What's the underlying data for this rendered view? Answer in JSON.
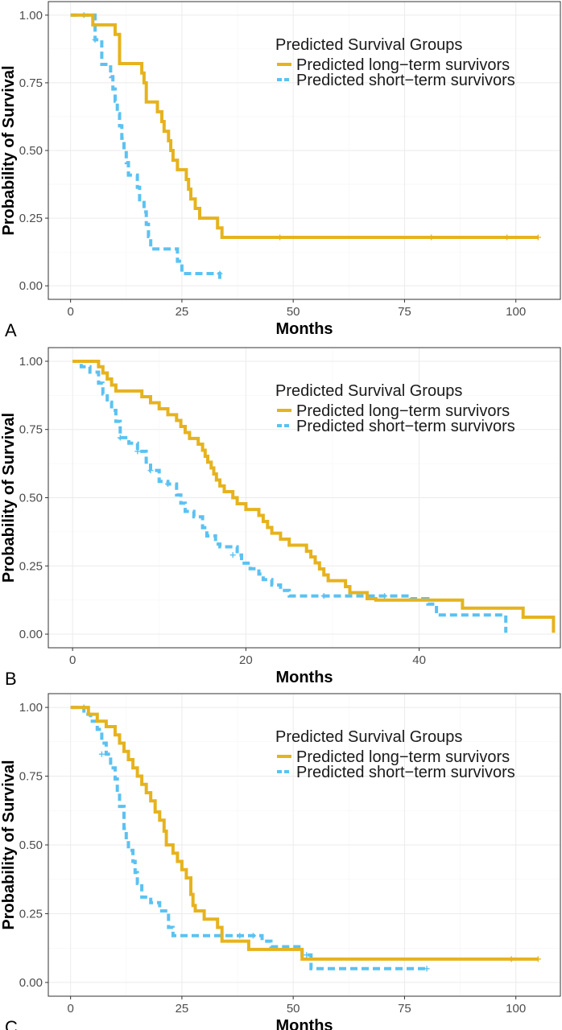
{
  "colors": {
    "long": "#E6B31E",
    "short": "#5BC2F2"
  },
  "chart_data": [
    {
      "type": "line",
      "subtype": "kaplan-meier-step",
      "panel_label": "A",
      "xlabel": "Months",
      "ylabel": "Probability of Survival",
      "xlim": [
        -5,
        110
      ],
      "ylim": [
        -0.05,
        1.05
      ],
      "xticks": [
        0,
        25,
        50,
        75,
        100
      ],
      "xtick_labels": [
        "0",
        "25",
        "50",
        "75",
        "100"
      ],
      "yticks": [
        0,
        0.25,
        0.5,
        0.75,
        1
      ],
      "ytick_labels": [
        "0.00",
        "0.25",
        "0.50",
        "0.75",
        "1.00"
      ],
      "grid": true,
      "legend": {
        "title": "Predicted Survival Groups",
        "position": "top-right",
        "entries": [
          "Predicted long−term survivors",
          "Predicted short−term survivors"
        ]
      },
      "series": [
        {
          "name": "Predicted long−term survivors",
          "style": "solid",
          "steps": [
            [
              0,
              1
            ],
            [
              5,
              0.964
            ],
            [
              10,
              0.929
            ],
            [
              11,
              0.821
            ],
            [
              16,
              0.786
            ],
            [
              16.5,
              0.75
            ],
            [
              17,
              0.679
            ],
            [
              19.5,
              0.643
            ],
            [
              20.5,
              0.607
            ],
            [
              21,
              0.571
            ],
            [
              22,
              0.536
            ],
            [
              22.5,
              0.5
            ],
            [
              23,
              0.464
            ],
            [
              24,
              0.429
            ],
            [
              26,
              0.393
            ],
            [
              26.5,
              0.357
            ],
            [
              27,
              0.321
            ],
            [
              28,
              0.286
            ],
            [
              29,
              0.25
            ],
            [
              33,
              0.214
            ],
            [
              34,
              0.179
            ],
            [
              105,
              0.179
            ]
          ],
          "censors": [
            [
              47,
              0.179
            ],
            [
              81,
              0.179
            ],
            [
              98,
              0.179
            ],
            [
              105,
              0.179
            ]
          ]
        },
        {
          "name": "Predicted short−term survivors",
          "style": "dashed",
          "steps": [
            [
              0,
              1
            ],
            [
              5.5,
              0.909
            ],
            [
              7,
              0.818
            ],
            [
              9,
              0.773
            ],
            [
              9.5,
              0.727
            ],
            [
              10,
              0.682
            ],
            [
              10.5,
              0.636
            ],
            [
              11,
              0.591
            ],
            [
              11.5,
              0.545
            ],
            [
              12,
              0.5
            ],
            [
              12.5,
              0.455
            ],
            [
              13,
              0.409
            ],
            [
              15,
              0.364
            ],
            [
              15.5,
              0.318
            ],
            [
              16.5,
              0.273
            ],
            [
              17,
              0.227
            ],
            [
              17.5,
              0.182
            ],
            [
              18,
              0.136
            ],
            [
              24,
              0.091
            ],
            [
              25,
              0.045
            ],
            [
              32,
              0.045
            ],
            [
              33.5,
              0.02
            ]
          ],
          "censors": [
            [
              3,
              1
            ],
            [
              5.5,
              0.909
            ],
            [
              33.5,
              0.045
            ]
          ]
        }
      ]
    },
    {
      "type": "line",
      "subtype": "kaplan-meier-step",
      "panel_label": "B",
      "xlabel": "Months",
      "ylabel": "Probability of Survival",
      "xlim": [
        -2.8,
        56.3
      ],
      "ylim": [
        -0.05,
        1.05
      ],
      "xticks": [
        0,
        20,
        40
      ],
      "xtick_labels": [
        "0",
        "20",
        "40"
      ],
      "yticks": [
        0,
        0.25,
        0.5,
        0.75,
        1
      ],
      "ytick_labels": [
        "0.00",
        "0.25",
        "0.50",
        "0.75",
        "1.00"
      ],
      "grid": true,
      "legend": {
        "title": "Predicted Survival Groups",
        "position": "top-right",
        "entries": [
          "Predicted long−term survivors",
          "Predicted short−term survivors"
        ]
      },
      "series": [
        {
          "name": "Predicted long−term survivors",
          "style": "solid",
          "steps": [
            [
              0,
              1
            ],
            [
              3,
              0.98
            ],
            [
              3.5,
              0.957
            ],
            [
              4,
              0.935
            ],
            [
              4.5,
              0.913
            ],
            [
              5,
              0.891
            ],
            [
              8,
              0.87
            ],
            [
              9,
              0.848
            ],
            [
              10,
              0.826
            ],
            [
              11,
              0.804
            ],
            [
              12,
              0.783
            ],
            [
              12.5,
              0.761
            ],
            [
              13,
              0.739
            ],
            [
              13.5,
              0.717
            ],
            [
              14.5,
              0.696
            ],
            [
              15,
              0.674
            ],
            [
              15.3,
              0.652
            ],
            [
              15.6,
              0.63
            ],
            [
              16,
              0.609
            ],
            [
              16.3,
              0.587
            ],
            [
              16.6,
              0.565
            ],
            [
              17,
              0.543
            ],
            [
              17.5,
              0.522
            ],
            [
              18.5,
              0.5
            ],
            [
              19,
              0.478
            ],
            [
              20,
              0.457
            ],
            [
              21.5,
              0.435
            ],
            [
              22,
              0.413
            ],
            [
              22.5,
              0.391
            ],
            [
              23,
              0.37
            ],
            [
              24,
              0.348
            ],
            [
              25,
              0.326
            ],
            [
              27,
              0.304
            ],
            [
              27.5,
              0.283
            ],
            [
              28,
              0.261
            ],
            [
              28.5,
              0.239
            ],
            [
              29,
              0.217
            ],
            [
              29.5,
              0.196
            ],
            [
              31.5,
              0.174
            ],
            [
              32,
              0.152
            ],
            [
              34,
              0.13
            ],
            [
              35,
              0.125
            ],
            [
              45,
              0.095
            ],
            [
              52,
              0.062
            ],
            [
              55.5,
              0.062
            ],
            [
              55.5,
              0.005
            ]
          ],
          "censors": []
        },
        {
          "name": "Predicted short−term survivors",
          "style": "dashed",
          "steps": [
            [
              0,
              1
            ],
            [
              1,
              0.98
            ],
            [
              2,
              0.96
            ],
            [
              3,
              0.92
            ],
            [
              3.5,
              0.88
            ],
            [
              4,
              0.85
            ],
            [
              4.5,
              0.82
            ],
            [
              5,
              0.78
            ],
            [
              5.5,
              0.72
            ],
            [
              6.5,
              0.7
            ],
            [
              7.5,
              0.67
            ],
            [
              8.5,
              0.63
            ],
            [
              9,
              0.6
            ],
            [
              10,
              0.56
            ],
            [
              11,
              0.55
            ],
            [
              12,
              0.51
            ],
            [
              12.5,
              0.48
            ],
            [
              13,
              0.45
            ],
            [
              14,
              0.43
            ],
            [
              15,
              0.39
            ],
            [
              15.5,
              0.36
            ],
            [
              16.5,
              0.33
            ],
            [
              17,
              0.32
            ],
            [
              19,
              0.29
            ],
            [
              19.5,
              0.26
            ],
            [
              20.5,
              0.24
            ],
            [
              21.5,
              0.22
            ],
            [
              22,
              0.2
            ],
            [
              23,
              0.18
            ],
            [
              24,
              0.16
            ],
            [
              25,
              0.14
            ],
            [
              39,
              0.13
            ],
            [
              41,
              0.11
            ],
            [
              42,
              0.07
            ],
            [
              50,
              0.07
            ],
            [
              50,
              0.005
            ]
          ],
          "censors": [
            [
              5.5,
              0.72
            ],
            [
              7.5,
              0.67
            ],
            [
              9,
              0.6
            ],
            [
              11,
              0.55
            ],
            [
              18.5,
              0.29
            ],
            [
              29,
              0.14
            ],
            [
              36,
              0.14
            ]
          ]
        }
      ]
    },
    {
      "type": "line",
      "subtype": "kaplan-meier-step",
      "panel_label": "C",
      "xlabel": "Months",
      "ylabel": "Probability of Survival",
      "xlim": [
        -5,
        110
      ],
      "ylim": [
        -0.05,
        1.05
      ],
      "xticks": [
        0,
        25,
        50,
        75,
        100
      ],
      "xtick_labels": [
        "0",
        "25",
        "50",
        "75",
        "100"
      ],
      "yticks": [
        0,
        0.25,
        0.5,
        0.75,
        1
      ],
      "ytick_labels": [
        "0.00",
        "0.25",
        "0.50",
        "0.75",
        "1.00"
      ],
      "grid": true,
      "legend": {
        "title": "Predicted Survival Groups",
        "position": "top-right",
        "entries": [
          "Predicted long−term survivors",
          "Predicted short−term survivors"
        ]
      },
      "series": [
        {
          "name": "Predicted long−term survivors",
          "style": "solid",
          "steps": [
            [
              0,
              1
            ],
            [
              4,
              0.975
            ],
            [
              6,
              0.95
            ],
            [
              8,
              0.93
            ],
            [
              10,
              0.9
            ],
            [
              11,
              0.87
            ],
            [
              12,
              0.84
            ],
            [
              13,
              0.81
            ],
            [
              14,
              0.78
            ],
            [
              15,
              0.75
            ],
            [
              16,
              0.72
            ],
            [
              17,
              0.69
            ],
            [
              18,
              0.66
            ],
            [
              19,
              0.62
            ],
            [
              20,
              0.59
            ],
            [
              21,
              0.55
            ],
            [
              21.5,
              0.5
            ],
            [
              23,
              0.47
            ],
            [
              24,
              0.44
            ],
            [
              25,
              0.41
            ],
            [
              26,
              0.38
            ],
            [
              27,
              0.32
            ],
            [
              27.5,
              0.28
            ],
            [
              28,
              0.26
            ],
            [
              30,
              0.23
            ],
            [
              33,
              0.2
            ],
            [
              34,
              0.15
            ],
            [
              40,
              0.12
            ],
            [
              52,
              0.085
            ],
            [
              105,
              0.085
            ]
          ],
          "censors": [
            [
              99,
              0.085
            ],
            [
              105,
              0.085
            ]
          ]
        },
        {
          "name": "Predicted short−term survivors",
          "style": "dashed",
          "steps": [
            [
              0,
              1
            ],
            [
              3,
              0.975
            ],
            [
              4.5,
              0.95
            ],
            [
              6,
              0.92
            ],
            [
              7,
              0.87
            ],
            [
              8,
              0.83
            ],
            [
              9,
              0.78
            ],
            [
              10,
              0.74
            ],
            [
              10.5,
              0.69
            ],
            [
              11,
              0.64
            ],
            [
              12,
              0.56
            ],
            [
              12.5,
              0.52
            ],
            [
              13,
              0.48
            ],
            [
              14,
              0.44
            ],
            [
              14.5,
              0.4
            ],
            [
              15,
              0.36
            ],
            [
              16,
              0.31
            ],
            [
              18,
              0.29
            ],
            [
              20,
              0.26
            ],
            [
              22,
              0.2
            ],
            [
              23,
              0.17
            ],
            [
              43,
              0.15
            ],
            [
              45,
              0.13
            ],
            [
              52,
              0.1
            ],
            [
              54,
              0.05
            ],
            [
              80,
              0.05
            ]
          ],
          "censors": [
            [
              3,
              1
            ],
            [
              7,
              0.83
            ],
            [
              38,
              0.17
            ],
            [
              41,
              0.17
            ],
            [
              53,
              0.1
            ],
            [
              80,
              0.05
            ]
          ]
        }
      ]
    }
  ]
}
